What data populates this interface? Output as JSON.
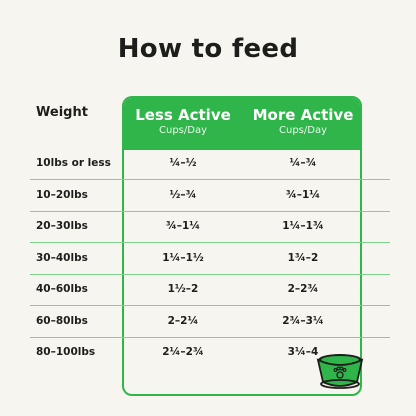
{
  "title": "How to feed",
  "header": {
    "weight_label": "Weight",
    "col1_title": "Less Active",
    "col1_sub": "Cups/Day",
    "col2_title": "More Active",
    "col2_sub": "Cups/Day"
  },
  "rows": [
    {
      "weight": "10lbs or less",
      "less": "¼–½",
      "more": "¼–¾"
    },
    {
      "weight": "10–20lbs",
      "less": "½–¾",
      "more": "¾–1¼"
    },
    {
      "weight": "20–30lbs",
      "less": "¾–1¼",
      "more": "1¼–1¾"
    },
    {
      "weight": "30–40lbs",
      "less": "1¼–1½",
      "more": "1¾–2"
    },
    {
      "weight": "40–60lbs",
      "less": "1½–2",
      "more": "2–2¾"
    },
    {
      "weight": "60–80lbs",
      "less": "2–2¼",
      "more": "2¾–3¼"
    },
    {
      "weight": "80–100lbs",
      "less": "2¼–2¾",
      "more": "3¼–4"
    }
  ],
  "colors": {
    "accent_green": "#2fb54a",
    "background": "#f7f5ef",
    "divider": "#7fd190"
  },
  "icons": {
    "bowl": "dog-bowl-paw-icon"
  }
}
